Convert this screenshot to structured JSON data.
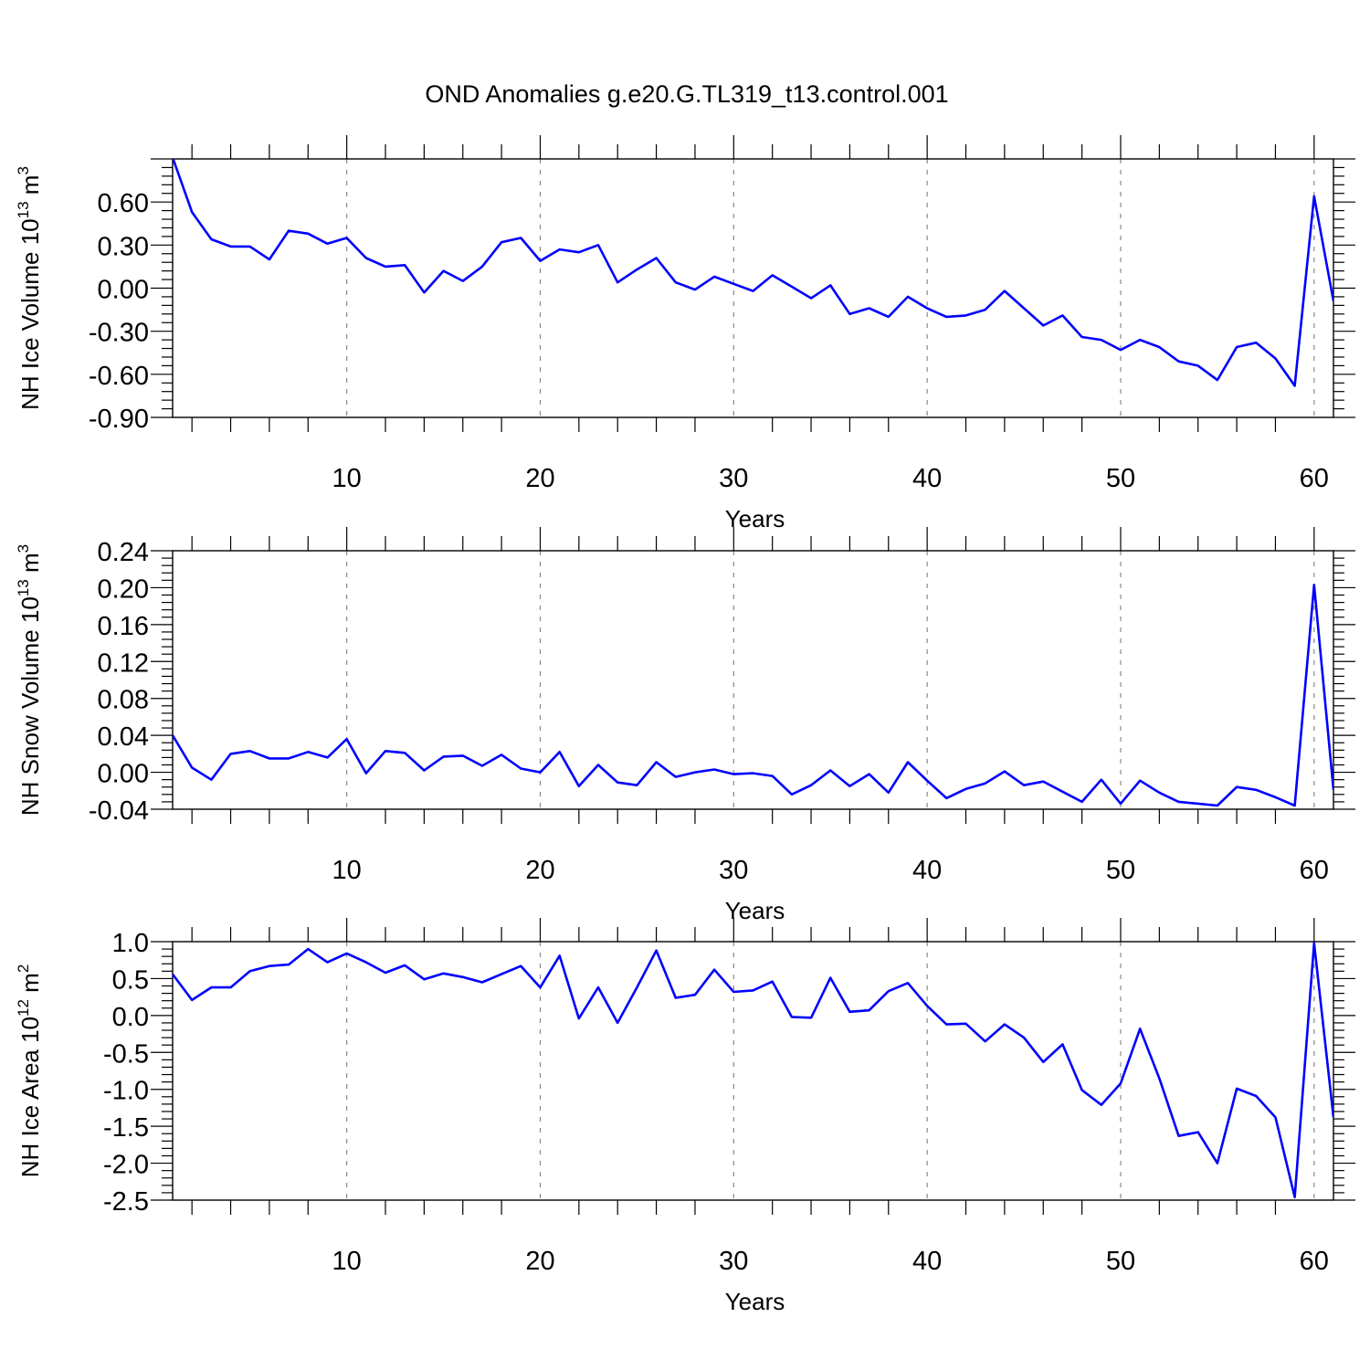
{
  "title": "OND Anomalies g.e20.G.TL319_t13.control.001",
  "chart_data": [
    {
      "type": "line",
      "xlabel": "Years",
      "ylabel": "NH Ice Volume 10",
      "ylabel_exp": "13",
      "ylabel_unit": " m",
      "ylabel_unit_exp": "3",
      "xlim": [
        1,
        61
      ],
      "ylim": [
        -0.9,
        0.9
      ],
      "x_ticks": [
        10,
        20,
        30,
        40,
        50,
        60
      ],
      "y_ticks": [
        -0.9,
        -0.6,
        -0.3,
        0.0,
        0.3,
        0.6
      ],
      "y_tick_labels": [
        "-0.90",
        "-0.60",
        "-0.30",
        "0.00",
        "0.30",
        "0.60"
      ],
      "grid": "vertical dashed at major x ticks",
      "line_color": "#0000ff",
      "x": [
        1,
        2,
        3,
        4,
        5,
        6,
        7,
        8,
        9,
        10,
        11,
        12,
        13,
        14,
        15,
        16,
        17,
        18,
        19,
        20,
        21,
        22,
        23,
        24,
        25,
        26,
        27,
        28,
        29,
        30,
        31,
        32,
        33,
        34,
        35,
        36,
        37,
        38,
        39,
        40,
        41,
        42,
        43,
        44,
        45,
        46,
        47,
        48,
        49,
        50,
        51,
        52,
        53,
        54,
        55,
        56,
        57,
        58,
        59,
        60,
        61
      ],
      "values": [
        0.91,
        0.53,
        0.34,
        0.29,
        0.29,
        0.2,
        0.4,
        0.38,
        0.31,
        0.35,
        0.21,
        0.15,
        0.16,
        -0.03,
        0.12,
        0.05,
        0.15,
        0.32,
        0.35,
        0.19,
        0.27,
        0.25,
        0.3,
        0.04,
        0.13,
        0.21,
        0.04,
        -0.01,
        0.08,
        0.03,
        -0.02,
        0.09,
        0.01,
        -0.07,
        0.02,
        -0.18,
        -0.14,
        -0.2,
        -0.06,
        -0.14,
        -0.2,
        -0.19,
        -0.15,
        -0.02,
        -0.14,
        -0.26,
        -0.19,
        -0.34,
        -0.36,
        -0.43,
        -0.36,
        -0.41,
        -0.51,
        -0.54,
        -0.64,
        -0.41,
        -0.38,
        -0.49,
        -0.68,
        0.64,
        -0.09
      ]
    },
    {
      "type": "line",
      "xlabel": "Years",
      "ylabel": "NH Snow Volume 10",
      "ylabel_exp": "13",
      "ylabel_unit": " m",
      "ylabel_unit_exp": "3",
      "xlim": [
        1,
        61
      ],
      "ylim": [
        -0.04,
        0.24
      ],
      "x_ticks": [
        10,
        20,
        30,
        40,
        50,
        60
      ],
      "y_ticks": [
        -0.04,
        0.0,
        0.04,
        0.08,
        0.12,
        0.16,
        0.2,
        0.24
      ],
      "y_tick_labels": [
        "-0.04",
        "0.00",
        "0.04",
        "0.08",
        "0.12",
        "0.16",
        "0.20",
        "0.24"
      ],
      "grid": "vertical dashed at major x ticks",
      "line_color": "#0000ff",
      "x": [
        1,
        2,
        3,
        4,
        5,
        6,
        7,
        8,
        9,
        10,
        11,
        12,
        13,
        14,
        15,
        16,
        17,
        18,
        19,
        20,
        21,
        22,
        23,
        24,
        25,
        26,
        27,
        28,
        29,
        30,
        31,
        32,
        33,
        34,
        35,
        36,
        37,
        38,
        39,
        40,
        41,
        42,
        43,
        44,
        45,
        46,
        47,
        48,
        49,
        50,
        51,
        52,
        53,
        54,
        55,
        56,
        57,
        58,
        59,
        60,
        61
      ],
      "values": [
        0.04,
        0.005,
        -0.008,
        0.02,
        0.023,
        0.015,
        0.015,
        0.022,
        0.016,
        0.036,
        -0.001,
        0.023,
        0.021,
        0.002,
        0.017,
        0.018,
        0.007,
        0.019,
        0.004,
        0.0,
        0.022,
        -0.015,
        0.008,
        -0.011,
        -0.014,
        0.011,
        -0.005,
        0.0,
        0.003,
        -0.002,
        -0.001,
        -0.004,
        -0.024,
        -0.014,
        0.002,
        -0.015,
        -0.002,
        -0.022,
        0.011,
        -0.009,
        -0.028,
        -0.018,
        -0.012,
        0.001,
        -0.014,
        -0.01,
        -0.021,
        -0.032,
        -0.008,
        -0.034,
        -0.009,
        -0.022,
        -0.032,
        -0.034,
        -0.036,
        -0.016,
        -0.019,
        -0.027,
        -0.036,
        0.203,
        -0.019
      ]
    },
    {
      "type": "line",
      "xlabel": "Years",
      "ylabel": "NH Ice Area 10",
      "ylabel_exp": "12",
      "ylabel_unit": " m",
      "ylabel_unit_exp": "2",
      "xlim": [
        1,
        61
      ],
      "ylim": [
        -2.5,
        1.0
      ],
      "x_ticks": [
        10,
        20,
        30,
        40,
        50,
        60
      ],
      "y_ticks": [
        -2.5,
        -2.0,
        -1.5,
        -1.0,
        -0.5,
        0.0,
        0.5,
        1.0
      ],
      "y_tick_labels": [
        "-2.5",
        "-2.0",
        "-1.5",
        "-1.0",
        "-0.5",
        "0.0",
        "0.5",
        "1.0"
      ],
      "grid": "vertical dashed at major x ticks",
      "line_color": "#0000ff",
      "x": [
        1,
        2,
        3,
        4,
        5,
        6,
        7,
        8,
        9,
        10,
        11,
        12,
        13,
        14,
        15,
        16,
        17,
        18,
        19,
        20,
        21,
        22,
        23,
        24,
        25,
        26,
        27,
        28,
        29,
        30,
        31,
        32,
        33,
        34,
        35,
        36,
        37,
        38,
        39,
        40,
        41,
        42,
        43,
        44,
        45,
        46,
        47,
        48,
        49,
        50,
        51,
        52,
        53,
        54,
        55,
        56,
        57,
        58,
        59,
        60,
        61
      ],
      "values": [
        0.56,
        0.21,
        0.38,
        0.38,
        0.6,
        0.67,
        0.69,
        0.9,
        0.72,
        0.84,
        0.72,
        0.58,
        0.68,
        0.49,
        0.57,
        0.52,
        0.45,
        0.56,
        0.67,
        0.38,
        0.81,
        -0.04,
        0.38,
        -0.1,
        0.38,
        0.88,
        0.24,
        0.28,
        0.62,
        0.32,
        0.34,
        0.46,
        -0.02,
        -0.03,
        0.51,
        0.05,
        0.07,
        0.33,
        0.44,
        0.13,
        -0.12,
        -0.11,
        -0.35,
        -0.12,
        -0.3,
        -0.63,
        -0.39,
        -1.01,
        -1.21,
        -0.92,
        -0.18,
        -0.85,
        -1.63,
        -1.58,
        -2.0,
        -0.99,
        -1.09,
        -1.38,
        -2.46,
        0.98,
        -1.38
      ]
    }
  ]
}
